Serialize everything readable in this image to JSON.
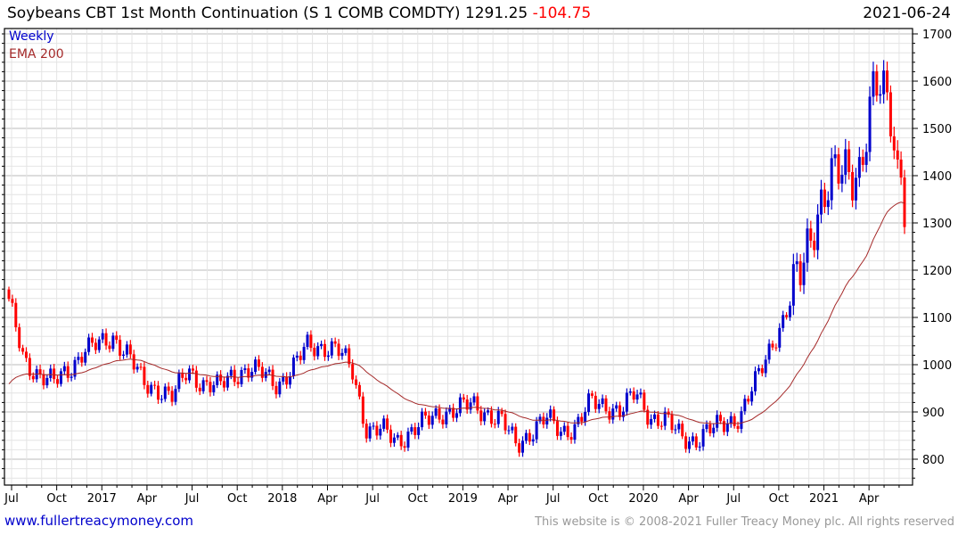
{
  "header": {
    "title": "Soybeans CBT 1st Month Continuation (S 1 COMB COMDTY) 1291.25",
    "change": "-104.75",
    "date": "2021-06-24"
  },
  "footer": {
    "site": "www.fullertreacymoney.com",
    "copyright": "This website is © 2008-2021 Fuller Treacy Money plc. All rights reserved"
  },
  "colors": {
    "up": "#0000cc",
    "down": "#ff0000",
    "ema": "#a52a2a",
    "grid_major": "#bbbbbb",
    "grid_minor": "#e4e4e4"
  },
  "chart_data": {
    "type": "candlestick",
    "title": "Soybeans CBT 1st Month Continuation (S 1 COMB COMDTY)",
    "last": 1291.25,
    "change": -104.75,
    "legend": [
      "Weekly",
      "EMA 200"
    ],
    "legend_placement": "top-left",
    "ylim": [
      740,
      1710
    ],
    "y_ticks": [
      800,
      900,
      1000,
      1100,
      1200,
      1300,
      1400,
      1500,
      1600,
      1700
    ],
    "x_tick_labels": [
      "Jul",
      "Oct",
      "2017",
      "Apr",
      "Jul",
      "Oct",
      "2018",
      "Apr",
      "Jul",
      "Oct",
      "2019",
      "Apr",
      "Jul",
      "Oct",
      "2020",
      "Apr",
      "Jul",
      "Oct",
      "2021",
      "Apr"
    ],
    "monthly_close_approx": [
      1130,
      1010,
      980,
      960,
      990,
      1030,
      1040,
      1060,
      1020,
      960,
      950,
      930,
      990,
      960,
      950,
      980,
      990,
      980,
      960,
      990,
      1040,
      1040,
      1030,
      990,
      860,
      860,
      840,
      860,
      880,
      900,
      905,
      915,
      900,
      880,
      830,
      860,
      885,
      860,
      870,
      920,
      915,
      900,
      940,
      890,
      880,
      850,
      840,
      860,
      880,
      890,
      960,
      1040,
      1100,
      1190,
      1320,
      1380,
      1410,
      1420,
      1580,
      1560,
      1291.25
    ],
    "ema_start": 950,
    "ema_end_approx": 1335
  }
}
